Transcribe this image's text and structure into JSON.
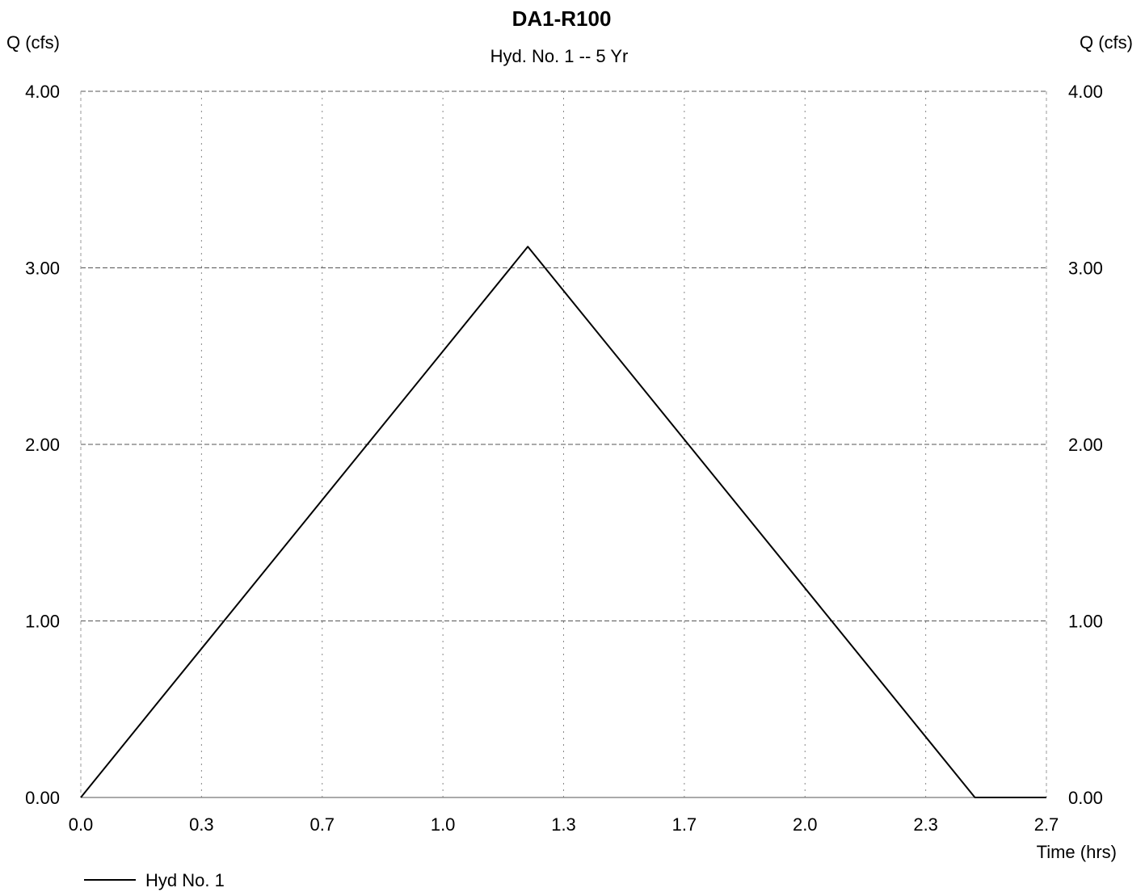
{
  "chart_data": {
    "type": "line",
    "title": "DA1-R100",
    "subtitle": "Hyd. No. 1 -- 5 Yr",
    "ylabel_left": "Q (cfs)",
    "ylabel_right": "Q (cfs)",
    "xlabel": "Time (hrs)",
    "xlim": [
      0.0,
      2.7
    ],
    "ylim": [
      0.0,
      4.0
    ],
    "x_ticks": [
      "0.0",
      "0.3",
      "0.7",
      "1.0",
      "1.3",
      "1.7",
      "2.0",
      "2.3",
      "2.7"
    ],
    "y_ticks_left": [
      "0.00",
      "1.00",
      "2.00",
      "3.00",
      "4.00"
    ],
    "y_ticks_right": [
      "0.00",
      "1.00",
      "2.00",
      "3.00",
      "4.00"
    ],
    "grid": true,
    "legend_position": "bottom-left",
    "series": [
      {
        "name": "Hyd No. 1",
        "color": "#000000",
        "x": [
          0.0,
          0.2,
          1.25,
          2.5,
          2.7
        ],
        "y": [
          0.0,
          0.5,
          3.12,
          0.0,
          0.0
        ]
      }
    ]
  }
}
